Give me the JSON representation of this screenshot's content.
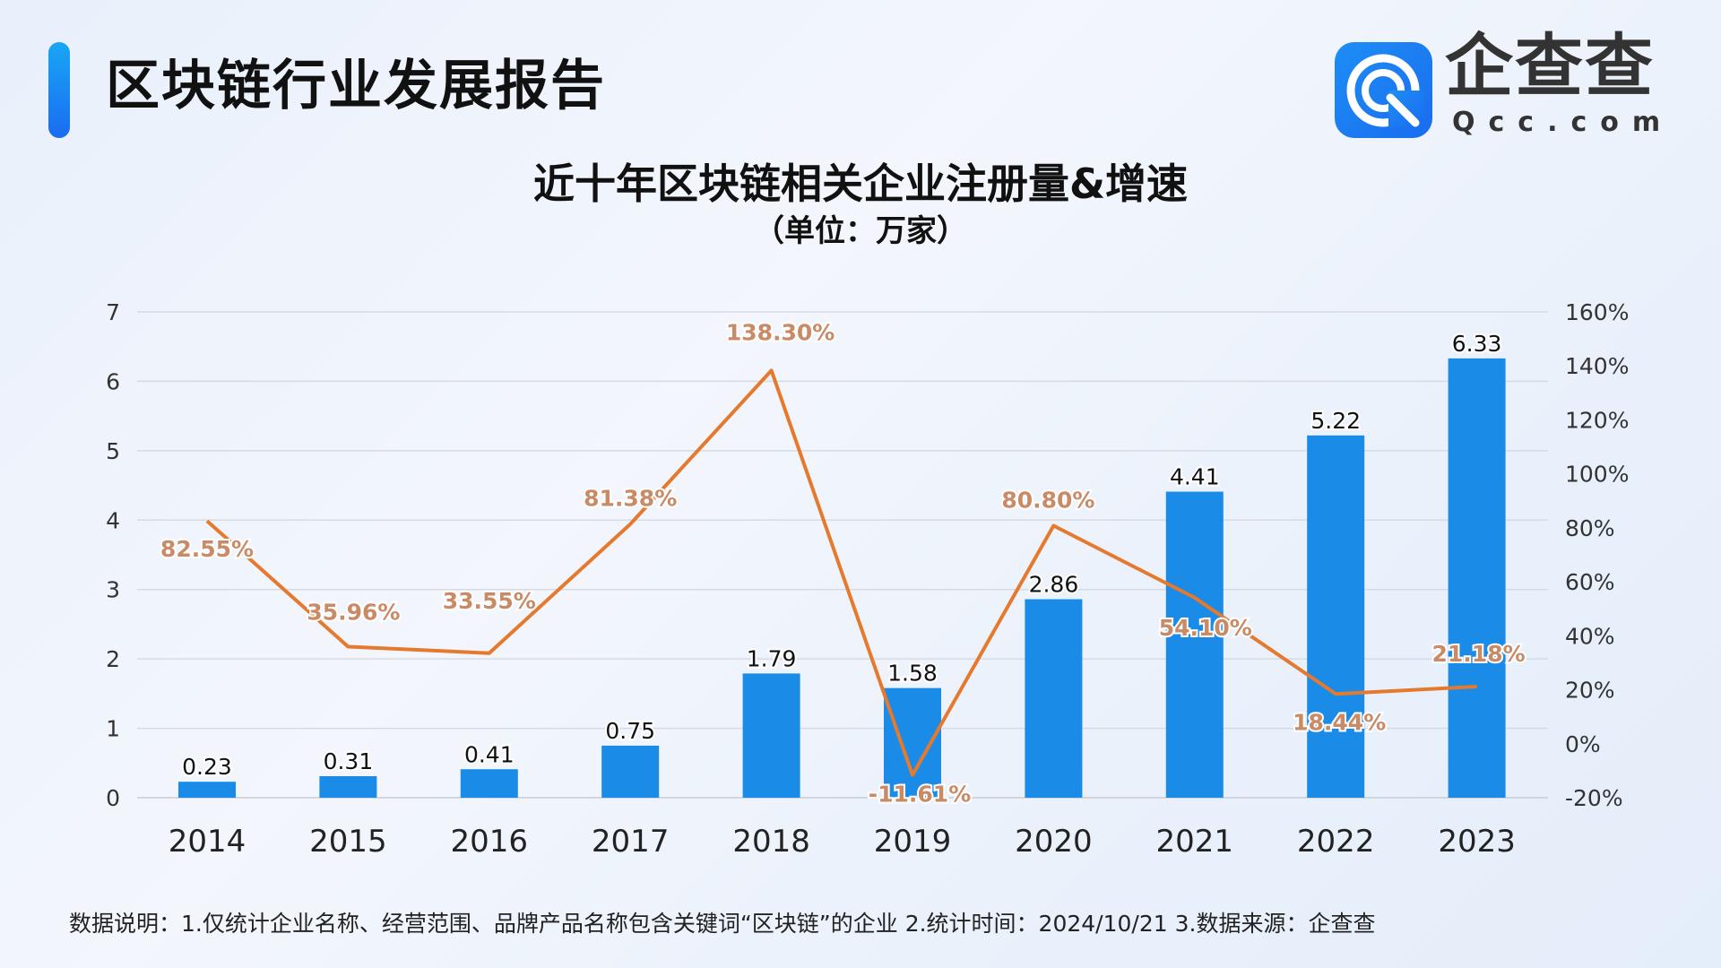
{
  "header": {
    "title": "区块链行业发展报告",
    "logo_text": "企查查",
    "logo_sub": "Qcc.com",
    "accent_color": "#1a8cf0"
  },
  "chart_data": {
    "type": "bar+line",
    "title": "近十年区块链相关企业注册量&增速",
    "subtitle": "（单位：万家）",
    "categories": [
      "2014",
      "2015",
      "2016",
      "2017",
      "2018",
      "2019",
      "2020",
      "2021",
      "2022",
      "2023"
    ],
    "series": [
      {
        "type": "bar",
        "axis": "left",
        "color": "#1a8ce8",
        "values": [
          0.23,
          0.31,
          0.41,
          0.75,
          1.79,
          1.58,
          2.86,
          4.41,
          5.22,
          6.33
        ],
        "labels": [
          "0.23",
          "0.31",
          "0.41",
          "0.75",
          "1.79",
          "1.58",
          "2.86",
          "4.41",
          "5.22",
          "6.33"
        ]
      },
      {
        "type": "line",
        "axis": "right",
        "color": "#e57a2e",
        "values": [
          82.55,
          35.96,
          33.55,
          81.38,
          138.3,
          -11.61,
          80.8,
          54.1,
          18.44,
          21.18
        ],
        "labels": [
          "82.55%",
          "35.96%",
          "33.55%",
          "81.38%",
          "138.30%",
          "-11.61%",
          "80.80%",
          "54.10%",
          "18.44%",
          "21.18%"
        ]
      }
    ],
    "y_left": {
      "range": [
        0,
        7
      ],
      "ticks": [
        "0",
        "1",
        "2",
        "3",
        "4",
        "5",
        "6",
        "7"
      ]
    },
    "y_right": {
      "range": [
        -20,
        160
      ],
      "ticks": [
        "-20%",
        "0%",
        "20%",
        "40%",
        "60%",
        "80%",
        "100%",
        "120%",
        "140%",
        "160%"
      ]
    },
    "grid": true
  },
  "footnote": "数据说明：1.仅统计企业名称、经营范围、品牌产品名称包含关键词“区块链”的企业   2.统计时间：2024/10/21    3.数据来源：企查查"
}
